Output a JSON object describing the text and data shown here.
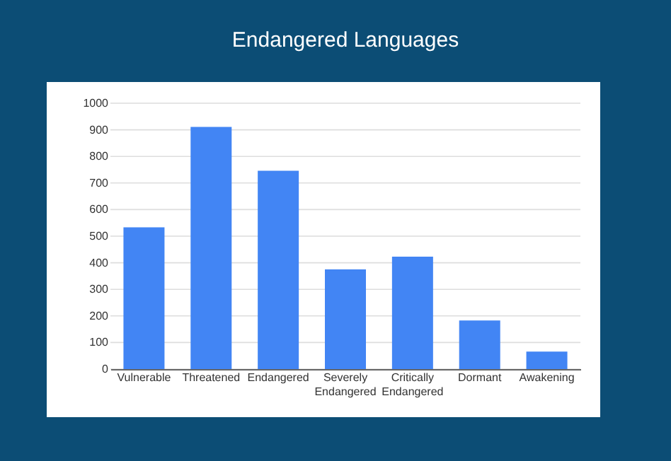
{
  "chart_data": {
    "type": "bar",
    "title": "Endangered Languages",
    "categories": [
      "Vulnerable",
      "Threatened",
      "Endangered",
      "Severely Endangered",
      "Critically Endangered",
      "Dormant",
      "Awakening"
    ],
    "values": [
      533,
      911,
      746,
      375,
      423,
      183,
      66
    ],
    "color": "#4285f4",
    "ylim": [
      0,
      1000
    ],
    "yticks": [
      0,
      100,
      200,
      300,
      400,
      500,
      600,
      700,
      800,
      900,
      1000
    ],
    "grid": "y"
  }
}
